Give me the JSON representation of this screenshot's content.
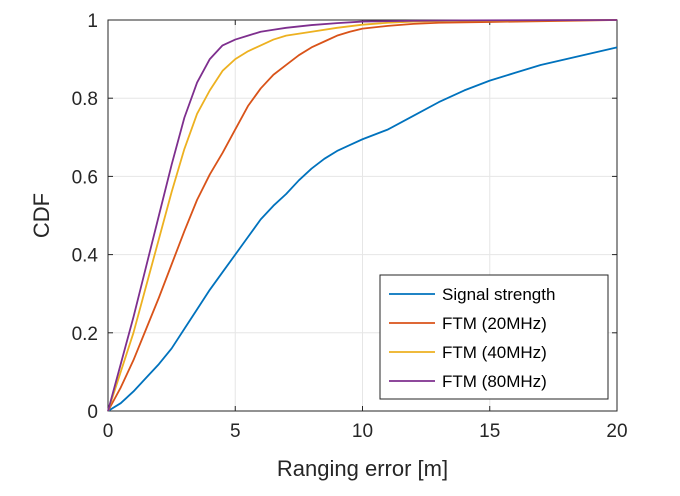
{
  "chart_data": {
    "type": "line",
    "title": "",
    "xlabel": "Ranging error [m]",
    "ylabel": "CDF",
    "xlim": [
      0,
      20
    ],
    "ylim": [
      0,
      1
    ],
    "xticks": [
      0,
      5,
      10,
      15,
      20
    ],
    "yticks": [
      0,
      0.2,
      0.4,
      0.6,
      0.8,
      1
    ],
    "xtick_labels": [
      "0",
      "5",
      "10",
      "15",
      "20"
    ],
    "ytick_labels": [
      "0",
      "0.2",
      "0.4",
      "0.6",
      "0.8",
      "1"
    ],
    "grid": true,
    "legend_position": "bottom-right",
    "series": [
      {
        "name": "Signal strength",
        "color": "#0072BD",
        "points": [
          [
            0,
            0
          ],
          [
            0.5,
            0.02
          ],
          [
            1,
            0.05
          ],
          [
            1.5,
            0.085
          ],
          [
            2,
            0.12
          ],
          [
            2.5,
            0.16
          ],
          [
            3,
            0.21
          ],
          [
            3.5,
            0.26
          ],
          [
            4,
            0.31
          ],
          [
            4.5,
            0.355
          ],
          [
            5,
            0.4
          ],
          [
            5.5,
            0.445
          ],
          [
            6,
            0.49
          ],
          [
            6.5,
            0.525
          ],
          [
            7,
            0.555
          ],
          [
            7.5,
            0.59
          ],
          [
            8,
            0.62
          ],
          [
            8.5,
            0.645
          ],
          [
            9,
            0.665
          ],
          [
            9.5,
            0.68
          ],
          [
            10,
            0.695
          ],
          [
            11,
            0.72
          ],
          [
            12,
            0.755
          ],
          [
            13,
            0.79
          ],
          [
            14,
            0.82
          ],
          [
            15,
            0.845
          ],
          [
            16,
            0.865
          ],
          [
            17,
            0.885
          ],
          [
            18,
            0.9
          ],
          [
            19,
            0.915
          ],
          [
            20,
            0.93
          ]
        ]
      },
      {
        "name": "FTM (20MHz)",
        "color": "#D95319",
        "points": [
          [
            0,
            0
          ],
          [
            0.5,
            0.06
          ],
          [
            1,
            0.13
          ],
          [
            1.5,
            0.21
          ],
          [
            2,
            0.29
          ],
          [
            2.5,
            0.375
          ],
          [
            3,
            0.46
          ],
          [
            3.5,
            0.54
          ],
          [
            4,
            0.605
          ],
          [
            4.5,
            0.66
          ],
          [
            5,
            0.72
          ],
          [
            5.5,
            0.78
          ],
          [
            6,
            0.825
          ],
          [
            6.5,
            0.86
          ],
          [
            7,
            0.885
          ],
          [
            7.5,
            0.91
          ],
          [
            8,
            0.93
          ],
          [
            8.5,
            0.945
          ],
          [
            9,
            0.96
          ],
          [
            9.5,
            0.97
          ],
          [
            10,
            0.978
          ],
          [
            11,
            0.985
          ],
          [
            12,
            0.99
          ],
          [
            13,
            0.993
          ],
          [
            15,
            0.995
          ],
          [
            17,
            0.997
          ],
          [
            20,
            1.0
          ]
        ]
      },
      {
        "name": "FTM (40MHz)",
        "color": "#EDB120",
        "points": [
          [
            0,
            0
          ],
          [
            0.5,
            0.1
          ],
          [
            1,
            0.2
          ],
          [
            1.5,
            0.32
          ],
          [
            2,
            0.44
          ],
          [
            2.5,
            0.56
          ],
          [
            3,
            0.67
          ],
          [
            3.5,
            0.76
          ],
          [
            4,
            0.82
          ],
          [
            4.5,
            0.87
          ],
          [
            5,
            0.9
          ],
          [
            5.5,
            0.92
          ],
          [
            6,
            0.935
          ],
          [
            6.5,
            0.95
          ],
          [
            7,
            0.96
          ],
          [
            8,
            0.97
          ],
          [
            9,
            0.98
          ],
          [
            10,
            0.988
          ],
          [
            11,
            0.993
          ],
          [
            12,
            0.996
          ],
          [
            14,
            0.998
          ],
          [
            16,
            0.999
          ],
          [
            20,
            1.0
          ]
        ]
      },
      {
        "name": "FTM (80MHz)",
        "color": "#7E2F8E",
        "points": [
          [
            0,
            0
          ],
          [
            0.5,
            0.12
          ],
          [
            1,
            0.24
          ],
          [
            1.5,
            0.37
          ],
          [
            2,
            0.5
          ],
          [
            2.5,
            0.63
          ],
          [
            3,
            0.75
          ],
          [
            3.5,
            0.84
          ],
          [
            4,
            0.9
          ],
          [
            4.5,
            0.935
          ],
          [
            5,
            0.95
          ],
          [
            5.5,
            0.96
          ],
          [
            6,
            0.97
          ],
          [
            6.5,
            0.975
          ],
          [
            7,
            0.98
          ],
          [
            8,
            0.987
          ],
          [
            9,
            0.992
          ],
          [
            10,
            0.996
          ],
          [
            12,
            0.998
          ],
          [
            14,
            0.999
          ],
          [
            20,
            1.0
          ]
        ]
      }
    ]
  }
}
